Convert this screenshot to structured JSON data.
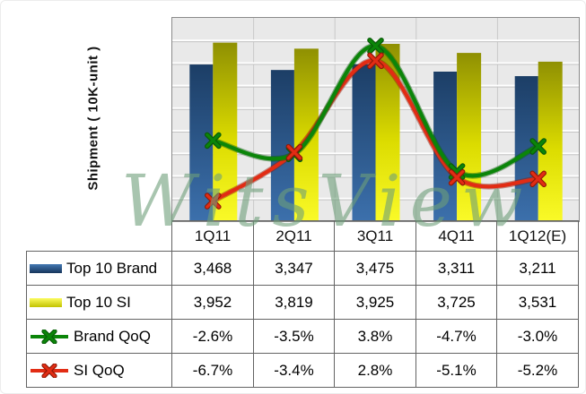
{
  "watermark": "WitsView",
  "y_axis_label": "Shipment ( 10K-unit )",
  "columns": [
    "1Q11",
    "2Q11",
    "3Q11",
    "4Q11",
    "1Q12(E)"
  ],
  "table": {
    "rows": [
      {
        "label": "Top 10 Brand",
        "values": [
          "3,468",
          "3,347",
          "3,475",
          "3,311",
          "3,211"
        ]
      },
      {
        "label": "Top 10 SI",
        "values": [
          "3,952",
          "3,819",
          "3,925",
          "3,725",
          "3,531"
        ]
      },
      {
        "label": "Brand QoQ",
        "values": [
          "-2.6%",
          "-3.5%",
          "3.8%",
          "-4.7%",
          "-3.0%"
        ]
      },
      {
        "label": "SI QoQ",
        "values": [
          "-6.7%",
          "-3.4%",
          "2.8%",
          "-5.1%",
          "-5.2%"
        ]
      }
    ]
  },
  "chart_data": {
    "type": "combo_bar_line",
    "title": "",
    "ylabel": "Shipment ( 10K-unit )",
    "categories": [
      "1Q11",
      "2Q11",
      "3Q11",
      "4Q11",
      "1Q12(E)"
    ],
    "series": [
      {
        "name": "Top 10 Brand",
        "type": "bar",
        "axis": "primary",
        "values": [
          3468,
          3347,
          3475,
          3311,
          3211
        ],
        "color_top": "#1c3e66",
        "color_bottom": "#3c70ac"
      },
      {
        "name": "Top 10 SI",
        "type": "bar",
        "axis": "primary",
        "values": [
          3952,
          3819,
          3925,
          3725,
          3531
        ],
        "color_top": "#8f9002",
        "color_mid": "#dcdc00",
        "color_bottom": "#fafa28"
      },
      {
        "name": "Brand QoQ",
        "type": "line",
        "axis": "secondary",
        "values": [
          -2.6,
          -3.5,
          3.8,
          -4.7,
          -3.0
        ],
        "color": "#0b8509",
        "color_dark": "#0a5a0a",
        "marker": "x"
      },
      {
        "name": "SI QoQ",
        "type": "line",
        "axis": "secondary",
        "values": [
          -6.7,
          -3.4,
          2.8,
          -5.1,
          -5.2
        ],
        "color": "#e22c14",
        "color_dark": "#8e1a08",
        "marker": "x"
      }
    ],
    "primary_axis": {
      "min": 0,
      "max": 4500,
      "gridline_intervals": 9,
      "ticks_visible": false
    },
    "secondary_axis": {
      "min": -8.06,
      "max": 5.7,
      "ticks_visible": false
    },
    "grid": true,
    "plot_background": "#e9e9e9",
    "legend_position": "data-table-left-keys"
  },
  "colors": {
    "swatch_brand_top": "#4479b4",
    "swatch_brand_bottom": "#16355b",
    "swatch_si_top": "#fcfc60",
    "swatch_si_bottom": "#c2c200",
    "brand_qoq": "#0b8509",
    "si_qoq": "#e22c14",
    "gridline": "#ffffff",
    "gridline_shadow": "#c2c2c2",
    "separator": "#c8c8c8"
  }
}
